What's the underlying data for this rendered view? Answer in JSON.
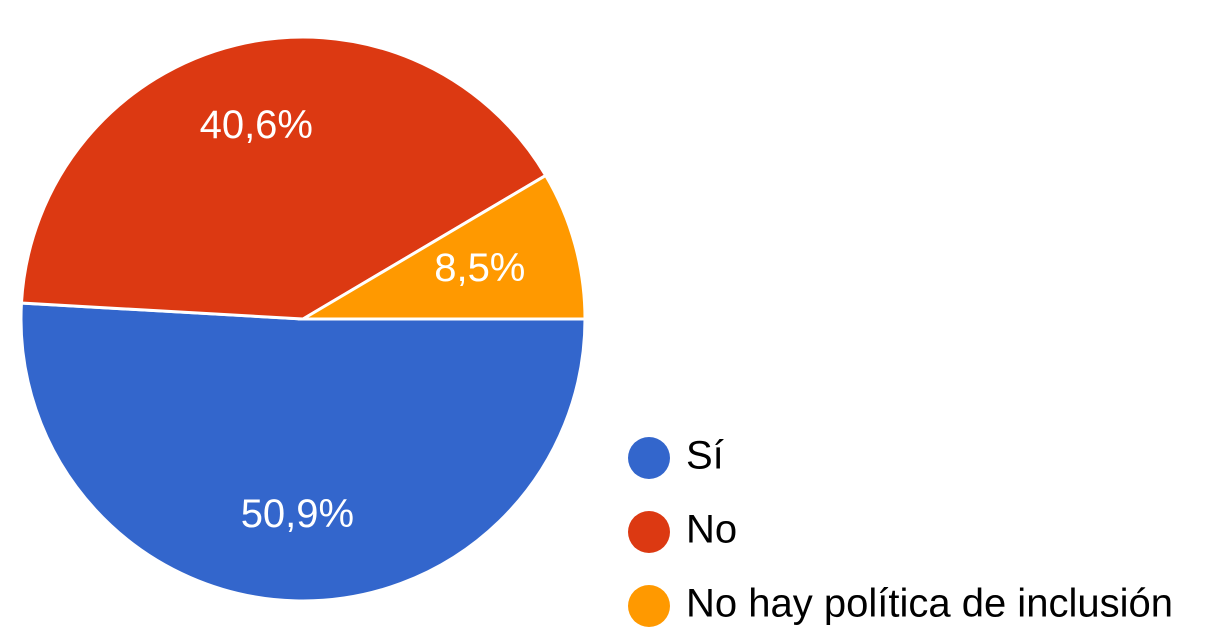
{
  "chart_data": {
    "type": "pie",
    "title": "",
    "categories": [
      "Sí",
      "No",
      "No hay política de inclusión"
    ],
    "values": [
      50.9,
      40.6,
      8.5
    ],
    "data_labels": [
      "50,9%",
      "40,6%",
      "8,5%"
    ],
    "colors": [
      "#3366cc",
      "#dc3912",
      "#ff9900"
    ],
    "start_angle": "0° (3 o'clock), clockwise: Sí, then No, then No hay política de inclusión",
    "legend": {
      "position": "bottom-right",
      "marker": "circle"
    }
  }
}
